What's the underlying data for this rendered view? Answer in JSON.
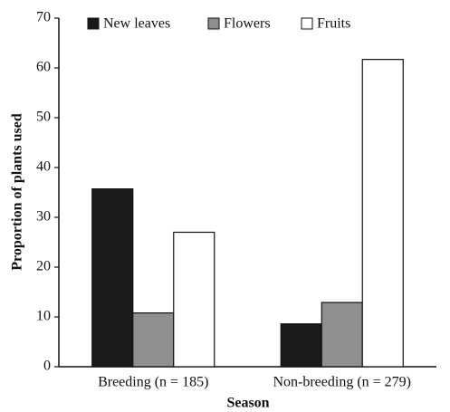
{
  "chart_data": {
    "type": "bar",
    "x_label": "Season",
    "y_label": "Proportion of plants used",
    "categories": [
      "Breeding (n = 185)",
      "Non-breeding (n = 279)"
    ],
    "series": [
      {
        "name": "New leaves",
        "color": "#1a1a1a",
        "values": [
          35.7,
          8.6
        ]
      },
      {
        "name": "Flowers",
        "color": "#8f8f8f",
        "values": [
          10.8,
          12.9
        ]
      },
      {
        "name": "Fruits",
        "color": "#ffffff",
        "values": [
          27,
          61.7
        ]
      }
    ],
    "ylim": [
      0,
      70
    ],
    "yticks": [
      0,
      10,
      20,
      30,
      40,
      50,
      60,
      70
    ],
    "grid": false,
    "legend": "top"
  }
}
